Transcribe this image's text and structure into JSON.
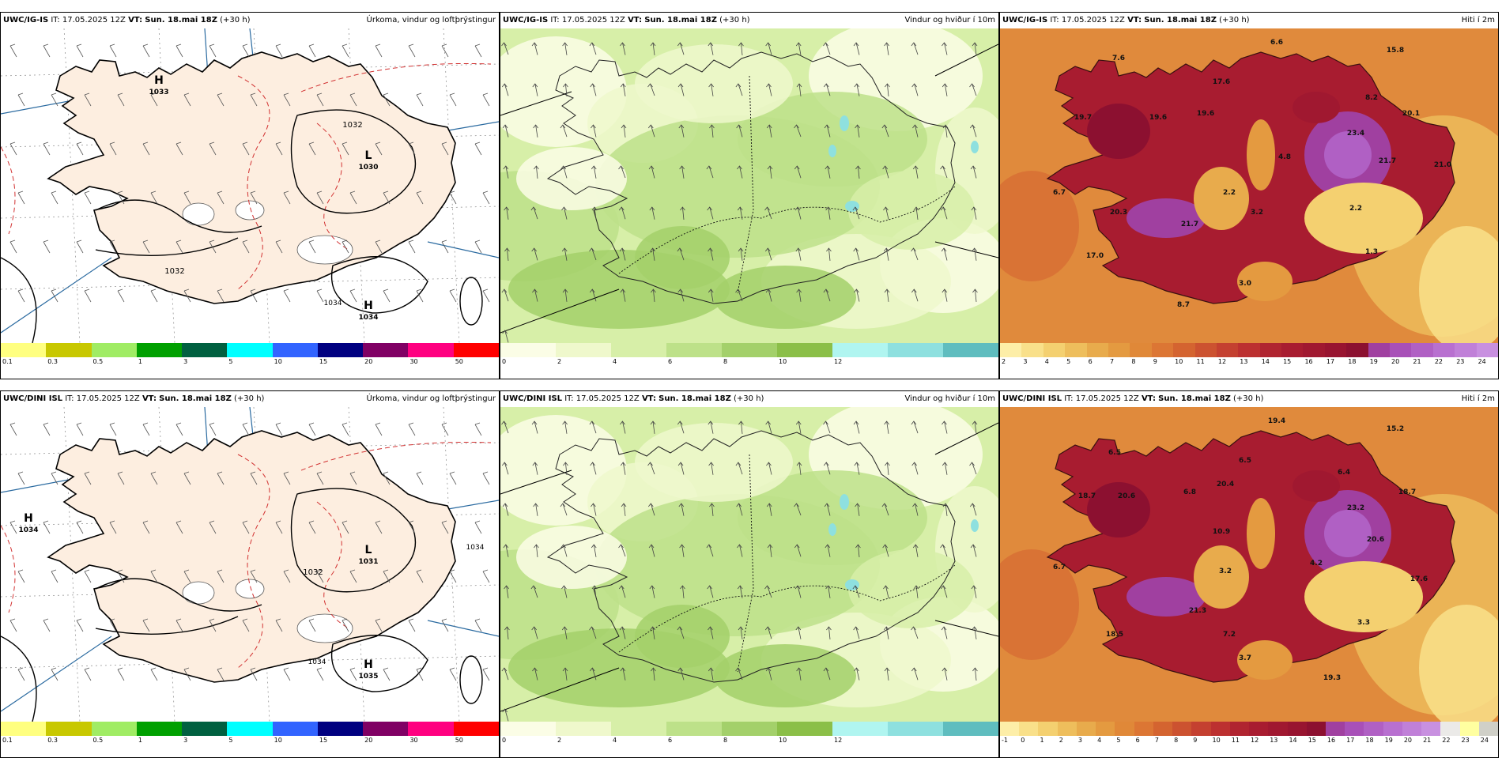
{
  "panels": [
    {
      "model": "UWC/IG-IS",
      "it_label": "IT:",
      "it": "17.05.2025 12Z",
      "vt_label": "VT:",
      "vt": "Sun. 18.mai 18Z",
      "lead": "(+30 h)",
      "title": "Úrkoma, vindur og loftþrýstingur"
    },
    {
      "model": "UWC/IG-IS",
      "it_label": "IT:",
      "it": "17.05.2025 12Z",
      "vt_label": "VT:",
      "vt": "Sun. 18.mai 18Z",
      "lead": "(+30 h)",
      "title": "Vindur og hviður í 10m"
    },
    {
      "model": "UWC/IG-IS",
      "it_label": "IT:",
      "it": "17.05.2025 12Z",
      "vt_label": "VT:",
      "vt": "Sun. 18.mai 18Z",
      "lead": "(+30 h)",
      "title": "Hiti í 2m"
    },
    {
      "model": "UWC/DINI ISL",
      "it_label": "IT:",
      "it": "17.05.2025 12Z",
      "vt_label": "VT:",
      "vt": "Sun. 18.mai 18Z",
      "lead": "(+30 h)",
      "title": "Úrkoma, vindur og loftþrýstingur"
    },
    {
      "model": "UWC/DINI ISL",
      "it_label": "IT:",
      "it": "17.05.2025 12Z",
      "vt_label": "VT:",
      "vt": "Sun. 18.mai 18Z",
      "lead": "(+30 h)",
      "title": "Vindur og hviður í 10m"
    },
    {
      "model": "UWC/DINI ISL",
      "it_label": "IT:",
      "it": "17.05.2025 12Z",
      "vt_label": "VT:",
      "vt": "Sun. 18.mai 18Z",
      "lead": "(+30 h)",
      "title": "Hiti í 2m"
    }
  ],
  "colors": {
    "precip": [
      "#ffff80",
      "#c8c800",
      "#a0ec64",
      "#00a000",
      "#006040",
      "#00ffff",
      "#3264ff",
      "#000080",
      "#800064",
      "#ff0080",
      "#ff0000"
    ],
    "wind": [
      "#fbfde6",
      "#eff8cc",
      "#d7efa8",
      "#bde189",
      "#a3d06a",
      "#8bbf48",
      "#b0f5f0",
      "#8ee0df",
      "#5fbdbf"
    ],
    "temp": [
      "#fdeea8",
      "#f9e08a",
      "#f4d070",
      "#eebe5c",
      "#e8ab4c",
      "#e49a40",
      "#e08838",
      "#dc7634",
      "#d46430",
      "#cc5230",
      "#c44030",
      "#bc3030",
      "#b02430",
      "#a81c30",
      "#a01830",
      "#981430",
      "#8c1030",
      "#a040a0",
      "#a850b8",
      "#b060c4",
      "#b870d0",
      "#c080d8",
      "#c890e0"
    ],
    "land_precip": "#fdeee0",
    "sea_temp": "#e08a3c",
    "isobar": "#000000",
    "pressure_dash": "#d23232"
  },
  "legends": {
    "precip": [
      "0.1",
      "0.3",
      "0.5",
      "1",
      "3",
      "5",
      "10",
      "15",
      "20",
      "30",
      "50"
    ],
    "wind": [
      "0",
      "2",
      "4",
      "6",
      "8",
      "10",
      "12"
    ],
    "temp_top": [
      "2",
      "3",
      "4",
      "5",
      "6",
      "7",
      "8",
      "9",
      "10",
      "11",
      "12",
      "13",
      "14",
      "15",
      "16",
      "17",
      "18",
      "19",
      "20",
      "21",
      "22",
      "23",
      "24"
    ],
    "temp_bottom": [
      "-1",
      "0",
      "1",
      "2",
      "3",
      "4",
      "5",
      "6",
      "7",
      "8",
      "9",
      "10",
      "11",
      "12",
      "13",
      "14",
      "15",
      "16",
      "17",
      "18",
      "19",
      "20",
      "21",
      "22",
      "23",
      "24"
    ]
  },
  "pressure_labels": {
    "top": {
      "high1_letter": "H",
      "high1_value": "1033",
      "low_letter": "L",
      "low_value": "1030",
      "high2_letter": "H",
      "high2_value": "1034",
      "isobar_a": "1032",
      "isobar_b": "1032",
      "isobar_c": "1034"
    },
    "bottom": {
      "high1_letter": "H",
      "high1_value": "1034",
      "low_letter": "L",
      "low_value": "1031",
      "high2_letter": "H",
      "high2_value": "1035",
      "isobar_a": "1032",
      "isobar_b": "1034",
      "isobar_c": "1034"
    }
  },
  "temp_values": {
    "top": [
      "6.6",
      "15.8",
      "7.6",
      "17.6",
      "19.7",
      "19.6",
      "19.6",
      "8.2",
      "23.4",
      "20.1",
      "4.8",
      "21.7",
      "21.0",
      "2.2",
      "2.2",
      "6.7",
      "20.3",
      "21.7",
      "3.2",
      "17.0",
      "3.0",
      "8.7",
      "1.3"
    ],
    "bottom": [
      "19.4",
      "15.2",
      "6.5",
      "6.5",
      "18.7",
      "20.6",
      "6.8",
      "20.4",
      "6.4",
      "23.2",
      "18.7",
      "10.9",
      "20.6",
      "6.7",
      "3.2",
      "4.2",
      "17.6",
      "21.3",
      "18.5",
      "7.2",
      "3.7",
      "19.3",
      "3.3"
    ]
  }
}
